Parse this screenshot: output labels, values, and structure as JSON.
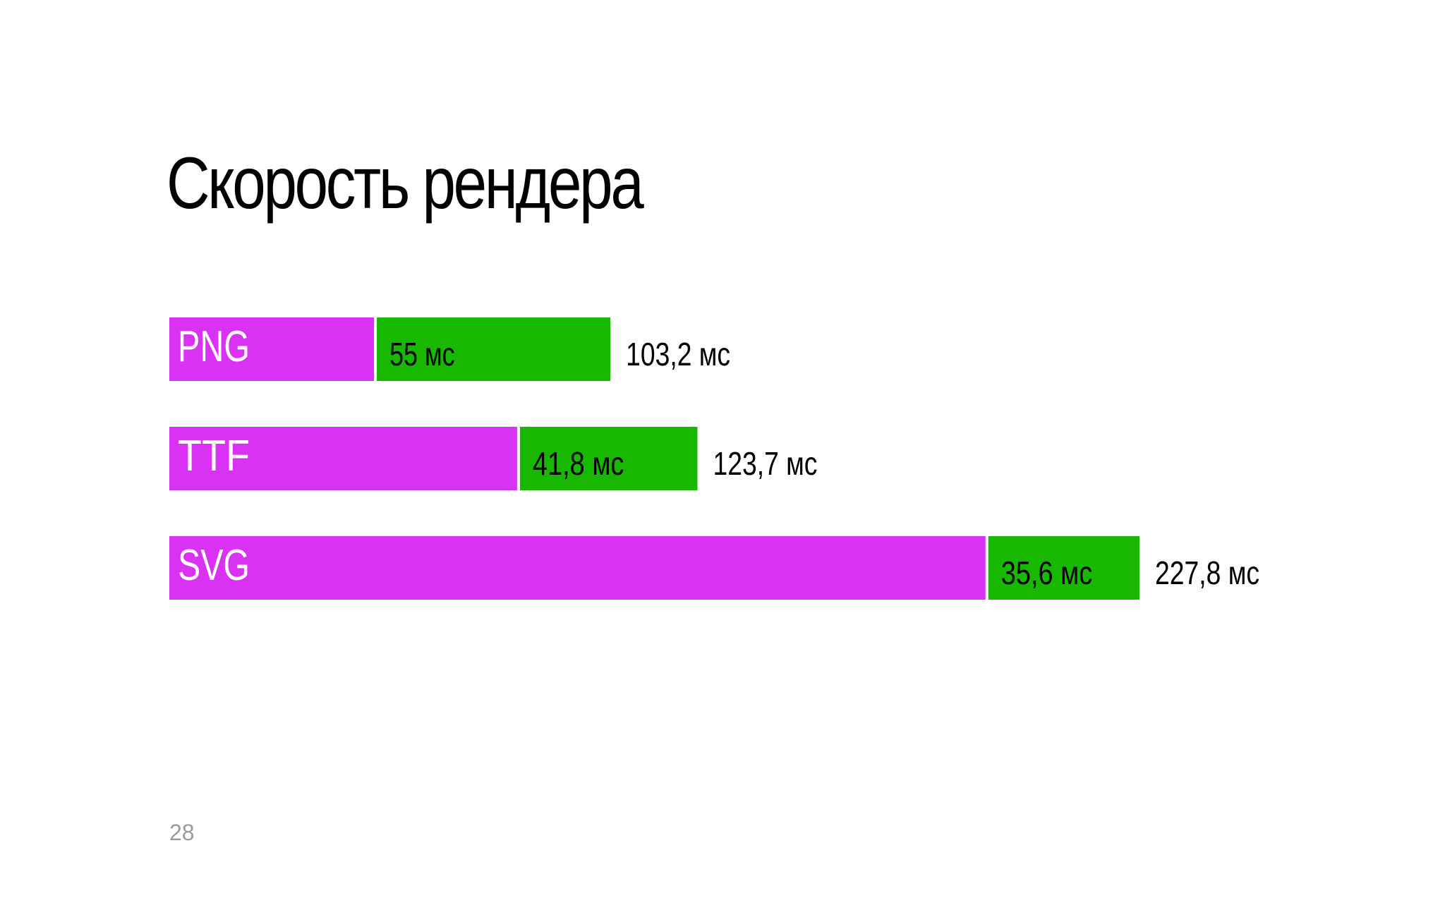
{
  "slide": {
    "title": "Скорость рендера",
    "page_number": "28"
  },
  "colors": {
    "format_bar": "#d932f5",
    "render_bar": "#18b800",
    "text": "#000000",
    "format_label": "#ffffff",
    "page_number": "#9a9a9a"
  },
  "chart_data": {
    "type": "bar",
    "orientation": "horizontal",
    "stacked": true,
    "categories": [
      "PNG",
      "TTF",
      "SVG"
    ],
    "series": [
      {
        "values": [
          48.2,
          81.9,
          192.2
        ]
      },
      {
        "values": [
          55,
          41.8,
          35.6
        ],
        "labels": [
          "55 мс",
          "41,8 мс",
          "35,6 мс"
        ]
      }
    ],
    "total_labels": [
      "103,2 мс",
      "123,7 мс",
      "227,8 мс"
    ],
    "totals": [
      103.2,
      123.7,
      227.8
    ],
    "xlim": [
      0,
      227.8
    ],
    "grid": false,
    "legend": "none"
  }
}
